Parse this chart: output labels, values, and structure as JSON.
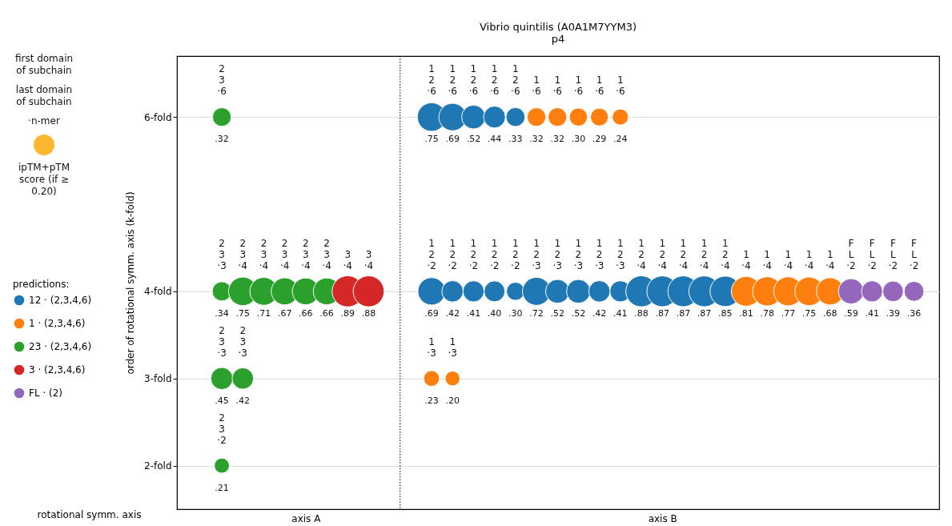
{
  "chart_data": {
    "type": "bubble",
    "title": "Vibrio quintilis (A0A1M7YYM3)",
    "subtitle": "p4",
    "xlabel": "rotational symm. axis",
    "ylabel": "order of rotational symm. axis (k-fold)",
    "legend_title": "predictions:",
    "categories": [
      null,
      null,
      null,
      null,
      null,
      "axis A",
      null,
      null,
      null,
      null,
      null,
      null,
      null,
      null,
      null,
      null,
      null,
      null,
      null,
      null,
      null,
      null,
      "axis B",
      null,
      null,
      null,
      null,
      null,
      null,
      null,
      null,
      null,
      null,
      null,
      null,
      null
    ],
    "ylim": [
      1.5,
      6.7
    ],
    "yticks": [
      {
        "value": 2,
        "label": "2-fold"
      },
      {
        "value": 3,
        "label": "3-fold"
      },
      {
        "value": 4,
        "label": "4-fold"
      },
      {
        "value": 6,
        "label": "6-fold"
      }
    ],
    "grid": "y",
    "legend": "left",
    "marker": "circle",
    "series": [
      {
        "name": "12 · (2,3,4,6)",
        "color": "#1f77b4",
        "values": [
          null,
          null,
          null,
          null,
          null,
          null,
          null,
          null,
          null,
          null,
          null,
          6,
          6,
          6,
          6,
          6,
          null,
          null,
          null,
          null,
          null,
          null,
          null,
          null,
          null,
          null,
          null,
          null,
          null,
          null,
          null,
          null,
          null,
          null,
          null,
          null
        ],
        "sizes": [
          null,
          null,
          null,
          null,
          null,
          null,
          null,
          null,
          null,
          null,
          null,
          0.75,
          0.69,
          0.52,
          0.44,
          0.33,
          null,
          null,
          null,
          null,
          null,
          null,
          null,
          null,
          null,
          null,
          null,
          null,
          null,
          null,
          null,
          null,
          null,
          null,
          null,
          null
        ],
        "value_labels": [
          null,
          null,
          null,
          null,
          null,
          null,
          null,
          null,
          null,
          null,
          null,
          ".75",
          ".69",
          ".52",
          ".44",
          ".33",
          null,
          null,
          null,
          null,
          null,
          null,
          null,
          null,
          null,
          null,
          null,
          null,
          null,
          null,
          null,
          null,
          null,
          null,
          null,
          null
        ]
      },
      {
        "color": "#1f77b4",
        "values": [
          null,
          null,
          null,
          null,
          null,
          null,
          null,
          null,
          null,
          null,
          null,
          4,
          4,
          4,
          4,
          4,
          4,
          4,
          4,
          4,
          4,
          4,
          4,
          4,
          4,
          4,
          null,
          null,
          null,
          null,
          null,
          null,
          null,
          null,
          null,
          null
        ],
        "sizes": [
          null,
          null,
          null,
          null,
          null,
          null,
          null,
          null,
          null,
          null,
          null,
          0.69,
          0.42,
          0.41,
          0.4,
          0.3,
          0.72,
          0.52,
          0.52,
          0.42,
          0.41,
          0.88,
          0.87,
          0.87,
          0.87,
          0.85,
          null,
          null,
          null,
          null,
          null,
          null,
          null,
          null,
          null,
          null
        ],
        "value_labels": [
          null,
          null,
          null,
          null,
          null,
          null,
          null,
          null,
          null,
          null,
          null,
          ".69",
          ".42",
          ".41",
          ".40",
          ".30",
          ".72",
          ".52",
          ".52",
          ".42",
          ".41",
          ".88",
          ".87",
          ".87",
          ".87",
          ".85",
          null,
          null,
          null,
          null,
          null,
          null,
          null,
          null,
          null,
          null
        ]
      },
      {
        "name": "1 · (2,3,4,6)",
        "color": "#ff7f0e",
        "values": [
          null,
          null,
          null,
          null,
          null,
          null,
          null,
          null,
          null,
          null,
          null,
          null,
          null,
          null,
          null,
          null,
          6,
          6,
          6,
          6,
          6,
          null,
          null,
          null,
          null,
          null,
          null,
          null,
          null,
          null,
          null,
          null,
          null,
          null,
          null,
          null
        ],
        "sizes": [
          null,
          null,
          null,
          null,
          null,
          null,
          null,
          null,
          null,
          null,
          null,
          null,
          null,
          null,
          null,
          null,
          0.32,
          0.32,
          0.3,
          0.29,
          0.24,
          null,
          null,
          null,
          null,
          null,
          null,
          null,
          null,
          null,
          null,
          null,
          null,
          null,
          null,
          null
        ],
        "value_labels": [
          null,
          null,
          null,
          null,
          null,
          null,
          null,
          null,
          null,
          null,
          null,
          null,
          null,
          null,
          null,
          null,
          ".32",
          ".32",
          ".30",
          ".29",
          ".24",
          null,
          null,
          null,
          null,
          null,
          null,
          null,
          null,
          null,
          null,
          null,
          null,
          null,
          null,
          null
        ]
      },
      {
        "color": "#ff7f0e",
        "values": [
          null,
          null,
          null,
          null,
          null,
          null,
          null,
          null,
          null,
          null,
          null,
          null,
          null,
          null,
          null,
          null,
          null,
          null,
          null,
          null,
          null,
          null,
          null,
          null,
          null,
          null,
          4,
          4,
          4,
          4,
          4,
          null,
          null,
          null,
          null,
          null
        ],
        "sizes": [
          null,
          null,
          null,
          null,
          null,
          null,
          null,
          null,
          null,
          null,
          null,
          null,
          null,
          null,
          null,
          null,
          null,
          null,
          null,
          null,
          null,
          null,
          null,
          null,
          null,
          null,
          0.81,
          0.78,
          0.77,
          0.75,
          0.68,
          null,
          null,
          null,
          null,
          null
        ],
        "value_labels": [
          null,
          null,
          null,
          null,
          null,
          null,
          null,
          null,
          null,
          null,
          null,
          null,
          null,
          null,
          null,
          null,
          null,
          null,
          null,
          null,
          null,
          null,
          null,
          null,
          null,
          null,
          ".81",
          ".78",
          ".77",
          ".75",
          ".68",
          null,
          null,
          null,
          null,
          null
        ]
      },
      {
        "color": "#ff7f0e",
        "values": [
          null,
          null,
          null,
          null,
          null,
          null,
          null,
          null,
          null,
          null,
          null,
          3,
          3,
          null,
          null,
          null,
          null,
          null,
          null,
          null,
          null,
          null,
          null,
          null,
          null,
          null,
          null,
          null,
          null,
          null,
          null,
          null,
          null,
          null,
          null,
          null
        ],
        "sizes": [
          null,
          null,
          null,
          null,
          null,
          null,
          null,
          null,
          null,
          null,
          null,
          0.23,
          0.2,
          null,
          null,
          null,
          null,
          null,
          null,
          null,
          null,
          null,
          null,
          null,
          null,
          null,
          null,
          null,
          null,
          null,
          null,
          null,
          null,
          null,
          null,
          null
        ],
        "value_labels": [
          null,
          null,
          null,
          null,
          null,
          null,
          null,
          null,
          null,
          null,
          null,
          ".23",
          ".20",
          null,
          null,
          null,
          null,
          null,
          null,
          null,
          null,
          null,
          null,
          null,
          null,
          null,
          null,
          null,
          null,
          null,
          null,
          null,
          null,
          null,
          null,
          null
        ]
      },
      {
        "name": "23 · (2,3,4,6)",
        "color": "#2ca02c",
        "values": [
          null,
          6,
          null,
          null,
          null,
          null,
          null,
          null,
          null,
          null,
          null,
          null,
          null,
          null,
          null,
          null,
          null,
          null,
          null,
          null,
          null,
          null,
          null,
          null,
          null,
          null,
          null,
          null,
          null,
          null,
          null,
          null,
          null,
          null,
          null,
          null
        ],
        "sizes": [
          null,
          0.32,
          null,
          null,
          null,
          null,
          null,
          null,
          null,
          null,
          null,
          null,
          null,
          null,
          null,
          null,
          null,
          null,
          null,
          null,
          null,
          null,
          null,
          null,
          null,
          null,
          null,
          null,
          null,
          null,
          null,
          null,
          null,
          null,
          null,
          null
        ],
        "value_labels": [
          null,
          ".32",
          null,
          null,
          null,
          null,
          null,
          null,
          null,
          null,
          null,
          null,
          null,
          null,
          null,
          null,
          null,
          null,
          null,
          null,
          null,
          null,
          null,
          null,
          null,
          null,
          null,
          null,
          null,
          null,
          null,
          null,
          null,
          null,
          null,
          null
        ]
      },
      {
        "color": "#2ca02c",
        "values": [
          null,
          4,
          4,
          4,
          4,
          4,
          4,
          null,
          null,
          null,
          null,
          null,
          null,
          null,
          null,
          null,
          null,
          null,
          null,
          null,
          null,
          null,
          null,
          null,
          null,
          null,
          null,
          null,
          null,
          null,
          null,
          null,
          null,
          null,
          null,
          null
        ],
        "sizes": [
          null,
          0.34,
          0.75,
          0.71,
          0.67,
          0.66,
          0.66,
          null,
          null,
          null,
          null,
          null,
          null,
          null,
          null,
          null,
          null,
          null,
          null,
          null,
          null,
          null,
          null,
          null,
          null,
          null,
          null,
          null,
          null,
          null,
          null,
          null,
          null,
          null,
          null,
          null
        ],
        "value_labels": [
          null,
          ".34",
          ".75",
          ".71",
          ".67",
          ".66",
          ".66",
          null,
          null,
          null,
          null,
          null,
          null,
          null,
          null,
          null,
          null,
          null,
          null,
          null,
          null,
          null,
          null,
          null,
          null,
          null,
          null,
          null,
          null,
          null,
          null,
          null,
          null,
          null,
          null,
          null
        ]
      },
      {
        "color": "#2ca02c",
        "values": [
          null,
          3,
          3,
          null,
          null,
          null,
          null,
          null,
          null,
          null,
          null,
          null,
          null,
          null,
          null,
          null,
          null,
          null,
          null,
          null,
          null,
          null,
          null,
          null,
          null,
          null,
          null,
          null,
          null,
          null,
          null,
          null,
          null,
          null,
          null,
          null
        ],
        "sizes": [
          null,
          0.45,
          0.42,
          null,
          null,
          null,
          null,
          null,
          null,
          null,
          null,
          null,
          null,
          null,
          null,
          null,
          null,
          null,
          null,
          null,
          null,
          null,
          null,
          null,
          null,
          null,
          null,
          null,
          null,
          null,
          null,
          null,
          null,
          null,
          null,
          null
        ],
        "value_labels": [
          null,
          ".45",
          ".42",
          null,
          null,
          null,
          null,
          null,
          null,
          null,
          null,
          null,
          null,
          null,
          null,
          null,
          null,
          null,
          null,
          null,
          null,
          null,
          null,
          null,
          null,
          null,
          null,
          null,
          null,
          null,
          null,
          null,
          null,
          null,
          null,
          null
        ]
      },
      {
        "color": "#2ca02c",
        "values": [
          null,
          2,
          null,
          null,
          null,
          null,
          null,
          null,
          null,
          null,
          null,
          null,
          null,
          null,
          null,
          null,
          null,
          null,
          null,
          null,
          null,
          null,
          null,
          null,
          null,
          null,
          null,
          null,
          null,
          null,
          null,
          null,
          null,
          null,
          null,
          null
        ],
        "sizes": [
          null,
          0.21,
          null,
          null,
          null,
          null,
          null,
          null,
          null,
          null,
          null,
          null,
          null,
          null,
          null,
          null,
          null,
          null,
          null,
          null,
          null,
          null,
          null,
          null,
          null,
          null,
          null,
          null,
          null,
          null,
          null,
          null,
          null,
          null,
          null,
          null
        ],
        "value_labels": [
          null,
          ".21",
          null,
          null,
          null,
          null,
          null,
          null,
          null,
          null,
          null,
          null,
          null,
          null,
          null,
          null,
          null,
          null,
          null,
          null,
          null,
          null,
          null,
          null,
          null,
          null,
          null,
          null,
          null,
          null,
          null,
          null,
          null,
          null,
          null,
          null
        ]
      },
      {
        "name": "3 · (2,3,4,6)",
        "color": "#d62728",
        "values": [
          null,
          null,
          null,
          null,
          null,
          null,
          null,
          4,
          4,
          null,
          null,
          null,
          null,
          null,
          null,
          null,
          null,
          null,
          null,
          null,
          null,
          null,
          null,
          null,
          null,
          null,
          null,
          null,
          null,
          null,
          null,
          null,
          null,
          null,
          null,
          null
        ],
        "sizes": [
          null,
          null,
          null,
          null,
          null,
          null,
          null,
          0.89,
          0.88,
          null,
          null,
          null,
          null,
          null,
          null,
          null,
          null,
          null,
          null,
          null,
          null,
          null,
          null,
          null,
          null,
          null,
          null,
          null,
          null,
          null,
          null,
          null,
          null,
          null,
          null,
          null
        ],
        "value_labels": [
          null,
          null,
          null,
          null,
          null,
          null,
          null,
          ".89",
          ".88",
          null,
          null,
          null,
          null,
          null,
          null,
          null,
          null,
          null,
          null,
          null,
          null,
          null,
          null,
          null,
          null,
          null,
          null,
          null,
          null,
          null,
          null,
          null,
          null,
          null,
          null,
          null
        ]
      },
      {
        "name": "FL · (2)",
        "color": "#9467bd",
        "values": [
          null,
          null,
          null,
          null,
          null,
          null,
          null,
          null,
          null,
          null,
          null,
          null,
          null,
          null,
          null,
          null,
          null,
          null,
          null,
          null,
          null,
          null,
          null,
          null,
          null,
          null,
          null,
          null,
          null,
          null,
          null,
          4,
          4,
          4,
          4,
          null
        ],
        "sizes": [
          null,
          null,
          null,
          null,
          null,
          null,
          null,
          null,
          null,
          null,
          null,
          null,
          null,
          null,
          null,
          null,
          null,
          null,
          null,
          null,
          null,
          null,
          null,
          null,
          null,
          null,
          null,
          null,
          null,
          null,
          null,
          0.59,
          0.41,
          0.39,
          0.36,
          null
        ],
        "value_labels": [
          null,
          null,
          null,
          null,
          null,
          null,
          null,
          null,
          null,
          null,
          null,
          null,
          null,
          null,
          null,
          null,
          null,
          null,
          null,
          null,
          null,
          null,
          null,
          null,
          null,
          null,
          null,
          null,
          null,
          null,
          null,
          ".59",
          ".41",
          ".39",
          ".36",
          null
        ]
      }
    ],
    "annotations": [
      "first domain of subchain",
      "last domain of subchain",
      "·n-mer",
      "ipTM+pTM score (if ≥ 0.20)",
      {
        "text": "1\n2\n·6",
        "y": 6
      },
      {
        "text": "1\n2\n·6",
        "y": 6
      },
      {
        "text": "1\n2\n·6",
        "y": 6
      },
      {
        "text": "1\n2\n·6",
        "y": 6
      },
      {
        "text": "1\n2\n·6",
        "y": 6
      },
      {
        "text": "1\n2\n·2",
        "y": 4
      },
      {
        "text": "1\n2\n·2",
        "y": 4
      },
      {
        "text": "1\n2\n·2",
        "y": 4
      },
      {
        "text": "1\n2\n·2",
        "y": 4
      },
      {
        "text": "1\n2\n·2",
        "y": 4
      },
      {
        "text": "1\n2\n·3",
        "y": 4
      },
      {
        "text": "1\n2\n·3",
        "y": 4
      },
      {
        "text": "1\n2\n·3",
        "y": 4
      },
      {
        "text": "1\n2\n·3",
        "y": 4
      },
      {
        "text": "1\n2\n·3",
        "y": 4
      },
      {
        "text": "1\n2\n·4",
        "y": 4
      },
      {
        "text": "1\n2\n·4",
        "y": 4
      },
      {
        "text": "1\n2\n·4",
        "y": 4
      },
      {
        "text": "1\n2\n·4",
        "y": 4
      },
      {
        "text": "1\n2\n·4",
        "y": 4
      },
      {
        "text": "1\n·6",
        "y": 6
      },
      {
        "text": "1\n·6",
        "y": 6
      },
      {
        "text": "1\n·6",
        "y": 6
      },
      {
        "text": "1\n·6",
        "y": 6
      },
      {
        "text": "1\n·6",
        "y": 6
      },
      {
        "text": "1\n·4",
        "y": 4
      },
      {
        "text": "1\n·4",
        "y": 4
      },
      {
        "text": "1\n·4",
        "y": 4
      },
      {
        "text": "1\n·4",
        "y": 4
      },
      {
        "text": "1\n·4",
        "y": 4
      },
      {
        "text": "1\n·3",
        "y": 3
      },
      {
        "text": "1\n·3",
        "y": 3
      },
      {
        "text": "2\n3\n·6",
        "y": 6
      },
      {
        "text": "2\n3\n·3",
        "y": 4
      },
      {
        "text": "2\n3\n·4",
        "y": 4
      },
      {
        "text": "2\n3\n·4",
        "y": 4
      },
      {
        "text": "2\n3\n·4",
        "y": 4
      },
      {
        "text": "2\n3\n·4",
        "y": 4
      },
      {
        "text": "2\n3\n·4",
        "y": 4
      },
      {
        "text": "2\n3\n·3",
        "y": 3
      },
      {
        "text": "2\n3\n·3",
        "y": 3
      },
      {
        "text": "2\n3\n·2",
        "y": 2
      },
      {
        "text": "3\n·4",
        "y": 4
      },
      {
        "text": "3\n·4",
        "y": 4
      },
      {
        "text": "F\nL\n·2",
        "y": 4
      },
      {
        "text": "F\nL\n·2",
        "y": 4
      },
      {
        "text": "F\nL\n·2",
        "y": 4
      },
      {
        "text": "F\nL\n·2",
        "y": 4
      }
    ]
  }
}
